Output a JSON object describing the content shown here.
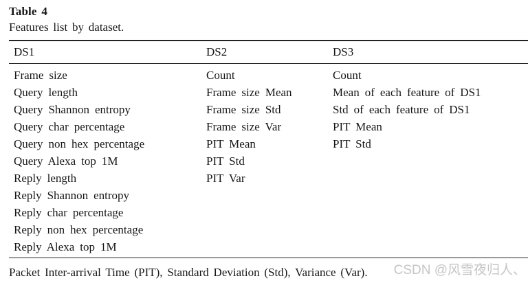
{
  "table": {
    "label": "Table 4",
    "caption": "Features list by dataset.",
    "columns": [
      "DS1",
      "DS2",
      "DS3"
    ],
    "rows": [
      [
        "Frame size",
        "Count",
        "Count"
      ],
      [
        "Query length",
        "Frame size Mean",
        "Mean of each feature of DS1"
      ],
      [
        "Query Shannon entropy",
        "Frame size Std",
        "Std of each feature of DS1"
      ],
      [
        "Query char percentage",
        "Frame size Var",
        "PIT Mean"
      ],
      [
        "Query non hex percentage",
        "PIT Mean",
        "PIT Std"
      ],
      [
        "Query Alexa top 1M",
        "PIT Std",
        ""
      ],
      [
        "Reply length",
        "PIT Var",
        ""
      ],
      [
        "Reply Shannon entropy",
        "",
        ""
      ],
      [
        "Reply char percentage",
        "",
        ""
      ],
      [
        "Reply non hex percentage",
        "",
        ""
      ],
      [
        "Reply Alexa top 1M",
        "",
        ""
      ]
    ],
    "footnote": "Packet Inter-arrival Time (PIT), Standard Deviation (Std), Variance (Var)."
  },
  "watermark": {
    "text": "CSDN @风雪夜归人、",
    "color": "#c7c4c4"
  },
  "colors": {
    "text": "#161616",
    "rule": "#222222",
    "background": "#ffffff"
  }
}
